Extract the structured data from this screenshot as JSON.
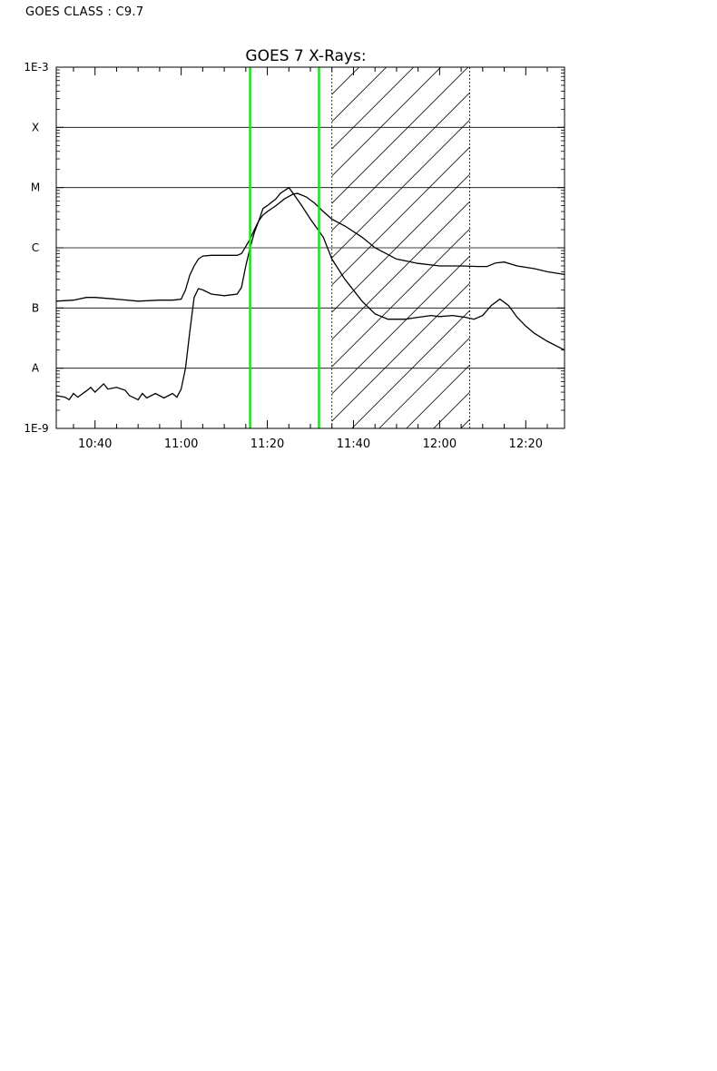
{
  "header": {
    "goes_class_label": "GOES CLASS : C9.7"
  },
  "colors": {
    "frame": "#000000",
    "curve": "#000000",
    "grid": "#000000",
    "marker": "#22dd22",
    "hatch": "#000000"
  },
  "chart_data": {
    "type": "line",
    "title": "GOES 7 X-Rays:",
    "xlabel": "",
    "ylabel": "",
    "y_scale": "log",
    "ylim": [
      1e-09,
      0.001
    ],
    "xlim": [
      "10:31",
      "12:29"
    ],
    "x_ticks": [
      "10:40",
      "11:00",
      "11:20",
      "11:40",
      "12:00",
      "12:20"
    ],
    "y_tick_labels": [
      {
        "value": 0.001,
        "label": "1E-3"
      },
      {
        "value": 0.0001,
        "label": "X"
      },
      {
        "value": 1e-05,
        "label": "M"
      },
      {
        "value": 1e-06,
        "label": "C"
      },
      {
        "value": 1e-07,
        "label": "B"
      },
      {
        "value": 1e-08,
        "label": "A"
      },
      {
        "value": 1e-09,
        "label": "1E-9"
      }
    ],
    "grid_levels": [
      0.0001,
      1e-05,
      1e-06,
      1e-07,
      1e-08
    ],
    "markers": [
      "11:16",
      "11:32"
    ],
    "hatched_interval": [
      "11:35",
      "12:07"
    ],
    "series": [
      {
        "x": [
          "10:31",
          "10:35",
          "10:38",
          "10:40",
          "10:45",
          "10:50",
          "10:55",
          "10:58",
          "11:00",
          "11:01",
          "11:02",
          "11:03",
          "11:04",
          "11:05",
          "11:07",
          "11:10",
          "11:13",
          "11:14",
          "11:15",
          "11:16",
          "11:17",
          "11:18",
          "11:19",
          "11:20",
          "11:22",
          "11:24",
          "11:26",
          "11:27",
          "11:29",
          "11:31",
          "11:33",
          "11:35",
          "11:38",
          "11:42",
          "11:45",
          "11:50",
          "11:55",
          "12:00",
          "12:05",
          "12:09",
          "12:11",
          "12:13",
          "12:15",
          "12:18",
          "12:22",
          "12:25",
          "12:29"
        ],
        "values": [
          1.3e-07,
          1.35e-07,
          1.5e-07,
          1.5e-07,
          1.4e-07,
          1.3e-07,
          1.35e-07,
          1.35e-07,
          1.4e-07,
          2e-07,
          3.5e-07,
          5e-07,
          6.5e-07,
          7.3e-07,
          7.5e-07,
          7.5e-07,
          7.5e-07,
          8e-07,
          1.05e-06,
          1.4e-06,
          2e-06,
          2.8e-06,
          3.5e-06,
          4e-06,
          5e-06,
          6.5e-06,
          7.8e-06,
          8e-06,
          7e-06,
          5.5e-06,
          4e-06,
          3e-06,
          2.3e-06,
          1.5e-06,
          1e-06,
          6.5e-07,
          5.5e-07,
          5e-07,
          5e-07,
          4.9e-07,
          4.9e-07,
          5.6e-07,
          5.8e-07,
          5e-07,
          4.5e-07,
          4e-07,
          3.6e-07
        ]
      },
      {
        "x": [
          "10:31",
          "10:33",
          "10:34",
          "10:35",
          "10:36",
          "10:38",
          "10:39",
          "10:40",
          "10:42",
          "10:43",
          "10:45",
          "10:47",
          "10:48",
          "10:50",
          "10:51",
          "10:52",
          "10:54",
          "10:56",
          "10:58",
          "10:59",
          "11:00",
          "11:01",
          "11:02",
          "11:03",
          "11:04",
          "11:05",
          "11:07",
          "11:10",
          "11:13",
          "11:14",
          "11:15",
          "11:16",
          "11:17",
          "11:18",
          "11:19",
          "11:20",
          "11:22",
          "11:23",
          "11:25",
          "11:26",
          "11:28",
          "11:30",
          "11:33",
          "11:35",
          "11:38",
          "11:42",
          "11:45",
          "11:48",
          "11:52",
          "11:55",
          "11:58",
          "12:00",
          "12:03",
          "12:06",
          "12:08",
          "12:10",
          "12:12",
          "12:14",
          "12:16",
          "12:18",
          "12:20",
          "12:22",
          "12:25",
          "12:29"
        ],
        "values": [
          3.5e-09,
          3.3e-09,
          3e-09,
          3.8e-09,
          3.3e-09,
          4.2e-09,
          4.8e-09,
          4e-09,
          5.5e-09,
          4.5e-09,
          4.8e-09,
          4.3e-09,
          3.5e-09,
          3e-09,
          3.8e-09,
          3.2e-09,
          3.8e-09,
          3.2e-09,
          3.8e-09,
          3.3e-09,
          4.5e-09,
          1e-08,
          4e-08,
          1.5e-07,
          2.1e-07,
          2e-07,
          1.7e-07,
          1.6e-07,
          1.7e-07,
          2.2e-07,
          5e-07,
          1e-06,
          1.8e-06,
          2.8e-06,
          4.5e-06,
          5e-06,
          6.5e-06,
          8e-06,
          1e-05,
          8e-06,
          5e-06,
          3e-06,
          1.5e-06,
          6.5e-07,
          3e-07,
          1.3e-07,
          8e-08,
          6.5e-08,
          6.5e-08,
          7e-08,
          7.5e-08,
          7.2e-08,
          7.5e-08,
          7e-08,
          6.5e-08,
          7.5e-08,
          1.1e-07,
          1.4e-07,
          1.1e-07,
          7e-08,
          5e-08,
          3.8e-08,
          2.8e-08,
          2e-08
        ]
      }
    ]
  }
}
